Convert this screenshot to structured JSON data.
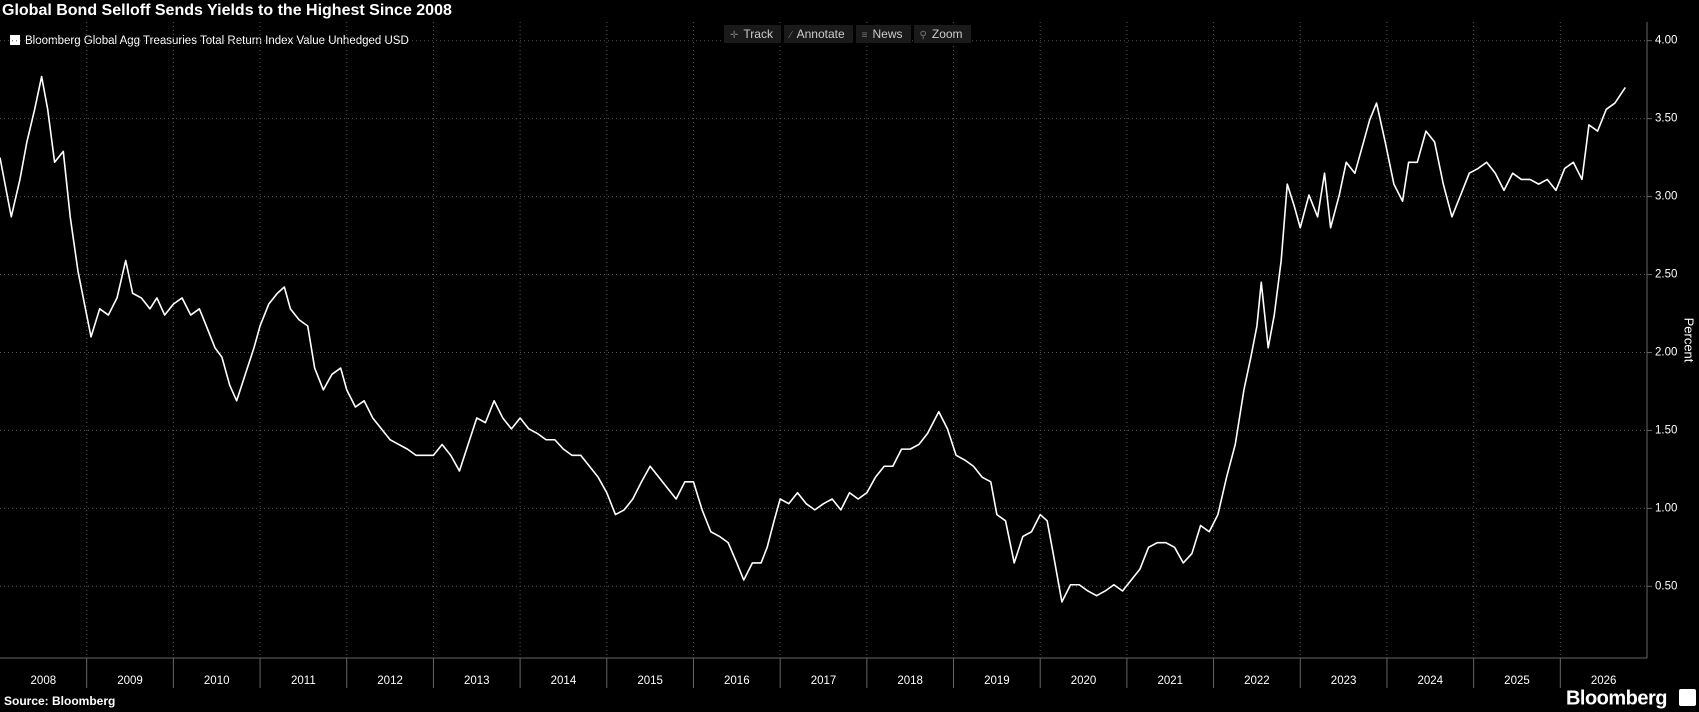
{
  "chart_data": {
    "type": "line",
    "title": "Global Bond Selloff Sends Yields to the Highest Since 2008",
    "y_label": "Percent",
    "source": "Source: Bloomberg",
    "brand": "Bloomberg",
    "x": [
      2008.0,
      2008.13,
      2008.23,
      2008.31,
      2008.4,
      2008.48,
      2008.55,
      2008.63,
      2008.73,
      2008.81,
      2008.9,
      2009.0,
      2009.05,
      2009.15,
      2009.25,
      2009.35,
      2009.45,
      2009.53,
      2009.63,
      2009.73,
      2009.81,
      2009.9,
      2010.0,
      2010.1,
      2010.2,
      2010.3,
      2010.38,
      2010.48,
      2010.56,
      2010.65,
      2010.73,
      2010.83,
      2010.93,
      2011.0,
      2011.1,
      2011.2,
      2011.28,
      2011.35,
      2011.45,
      2011.55,
      2011.63,
      2011.73,
      2011.83,
      2011.93,
      2012.0,
      2012.1,
      2012.2,
      2012.3,
      2012.4,
      2012.5,
      2012.6,
      2012.7,
      2012.8,
      2012.9,
      2013.0,
      2013.1,
      2013.2,
      2013.3,
      2013.4,
      2013.5,
      2013.6,
      2013.7,
      2013.8,
      2013.9,
      2014.0,
      2014.1,
      2014.2,
      2014.3,
      2014.4,
      2014.5,
      2014.6,
      2014.7,
      2014.8,
      2014.9,
      2015.0,
      2015.1,
      2015.2,
      2015.3,
      2015.4,
      2015.5,
      2015.6,
      2015.7,
      2015.8,
      2015.9,
      2016.0,
      2016.1,
      2016.2,
      2016.3,
      2016.4,
      2016.5,
      2016.58,
      2016.68,
      2016.78,
      2016.85,
      2016.93,
      2017.0,
      2017.1,
      2017.2,
      2017.3,
      2017.4,
      2017.5,
      2017.6,
      2017.7,
      2017.8,
      2017.9,
      2018.0,
      2018.1,
      2018.2,
      2018.3,
      2018.4,
      2018.5,
      2018.6,
      2018.7,
      2018.83,
      2018.93,
      2019.03,
      2019.13,
      2019.23,
      2019.33,
      2019.43,
      2019.5,
      2019.6,
      2019.7,
      2019.8,
      2019.9,
      2020.0,
      2020.08,
      2020.15,
      2020.25,
      2020.35,
      2020.45,
      2020.55,
      2020.65,
      2020.75,
      2020.85,
      2020.95,
      2021.05,
      2021.15,
      2021.25,
      2021.35,
      2021.45,
      2021.55,
      2021.65,
      2021.75,
      2021.85,
      2021.95,
      2022.05,
      2022.15,
      2022.25,
      2022.35,
      2022.43,
      2022.5,
      2022.55,
      2022.63,
      2022.7,
      2022.78,
      2022.85,
      2022.93,
      2023.0,
      2023.1,
      2023.2,
      2023.28,
      2023.35,
      2023.45,
      2023.53,
      2023.63,
      2023.73,
      2023.8,
      2023.88,
      2023.98,
      2024.08,
      2024.18,
      2024.25,
      2024.35,
      2024.45,
      2024.55,
      2024.65,
      2024.75,
      2024.85,
      2024.95,
      2025.05,
      2025.15,
      2025.25,
      2025.35,
      2025.45,
      2025.55,
      2025.65,
      2025.75,
      2025.85,
      2025.95,
      2026.05,
      2026.15,
      2026.25,
      2026.33,
      2026.43,
      2026.53,
      2026.63,
      2026.75
    ],
    "series": [
      {
        "name": "Bloomberg Global Agg Treasuries Total Return Index Value Unhedged USD",
        "color": "#ffffff",
        "values": [
          3.25,
          2.87,
          3.11,
          3.35,
          3.56,
          3.77,
          3.56,
          3.22,
          3.29,
          2.87,
          2.52,
          2.24,
          2.1,
          2.28,
          2.24,
          2.35,
          2.59,
          2.38,
          2.35,
          2.28,
          2.35,
          2.24,
          2.31,
          2.35,
          2.24,
          2.28,
          2.17,
          2.03,
          1.97,
          1.79,
          1.69,
          1.86,
          2.03,
          2.17,
          2.31,
          2.38,
          2.42,
          2.28,
          2.21,
          2.17,
          1.9,
          1.76,
          1.86,
          1.9,
          1.76,
          1.65,
          1.69,
          1.58,
          1.51,
          1.44,
          1.41,
          1.38,
          1.34,
          1.34,
          1.34,
          1.41,
          1.34,
          1.24,
          1.41,
          1.58,
          1.55,
          1.69,
          1.58,
          1.51,
          1.58,
          1.51,
          1.48,
          1.44,
          1.44,
          1.38,
          1.34,
          1.34,
          1.27,
          1.2,
          1.1,
          0.96,
          0.99,
          1.06,
          1.17,
          1.27,
          1.2,
          1.13,
          1.06,
          1.17,
          1.17,
          0.99,
          0.85,
          0.82,
          0.78,
          0.65,
          0.54,
          0.65,
          0.65,
          0.75,
          0.92,
          1.06,
          1.03,
          1.1,
          1.03,
          0.99,
          1.03,
          1.06,
          0.99,
          1.1,
          1.06,
          1.1,
          1.2,
          1.27,
          1.27,
          1.38,
          1.38,
          1.41,
          1.48,
          1.62,
          1.51,
          1.34,
          1.31,
          1.27,
          1.2,
          1.17,
          0.96,
          0.92,
          0.65,
          0.82,
          0.85,
          0.96,
          0.92,
          0.71,
          0.4,
          0.51,
          0.51,
          0.47,
          0.44,
          0.47,
          0.51,
          0.47,
          0.54,
          0.61,
          0.75,
          0.78,
          0.78,
          0.75,
          0.65,
          0.71,
          0.89,
          0.85,
          0.96,
          1.2,
          1.41,
          1.76,
          1.97,
          2.17,
          2.45,
          2.03,
          2.24,
          2.59,
          3.08,
          2.94,
          2.8,
          3.01,
          2.87,
          3.15,
          2.8,
          3.01,
          3.22,
          3.15,
          3.35,
          3.49,
          3.6,
          3.35,
          3.08,
          2.97,
          3.22,
          3.22,
          3.42,
          3.35,
          3.08,
          2.87,
          3.01,
          3.15,
          3.18,
          3.22,
          3.15,
          3.04,
          3.15,
          3.11,
          3.11,
          3.08,
          3.11,
          3.04,
          3.18,
          3.22,
          3.11,
          3.46,
          3.42,
          3.56,
          3.6,
          3.7
        ]
      }
    ],
    "xlim": [
      2008,
      2027
    ],
    "xticks": [
      2008,
      2009,
      2010,
      2011,
      2012,
      2013,
      2014,
      2015,
      2016,
      2017,
      2018,
      2019,
      2020,
      2021,
      2022,
      2023,
      2024,
      2025,
      2026
    ],
    "ylim": [
      0.04,
      4.12
    ],
    "yticks": [
      {
        "value": 0.5,
        "label": "0.50"
      },
      {
        "value": 1,
        "label": "1.00"
      },
      {
        "value": 1.5,
        "label": "1.50"
      },
      {
        "value": 2,
        "label": "2.00"
      },
      {
        "value": 2.5,
        "label": "2.50"
      },
      {
        "value": 3,
        "label": "3.00"
      },
      {
        "value": 3.5,
        "label": "3.50"
      },
      {
        "value": 4,
        "label": "4.00"
      }
    ],
    "grid": true
  },
  "toolbar": [
    "Track",
    "Annotate",
    "News",
    "Zoom"
  ]
}
